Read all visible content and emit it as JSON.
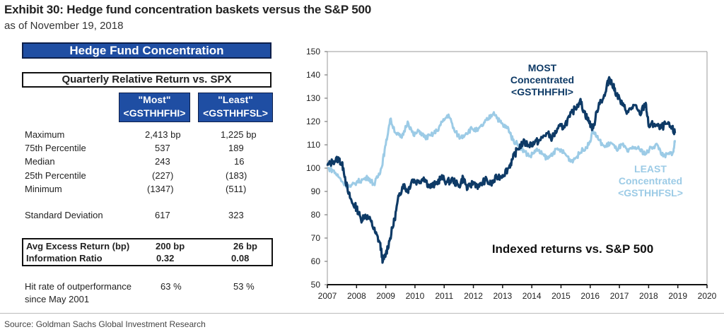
{
  "header": {
    "title": "Exhibit 30: Hedge fund concentration baskets versus the S&P 500",
    "subtitle": "as of November 19, 2018"
  },
  "table": {
    "banner": "Hedge Fund Concentration",
    "subbanner": "Quarterly Relative Return vs. SPX",
    "columns": [
      {
        "line1": "\"Most\"",
        "line2": "<GSTHHFHI>"
      },
      {
        "line1": "\"Least\"",
        "line2": "<GSTHHFSL>"
      }
    ],
    "rows": [
      {
        "label": "Maximum",
        "most": "2,413  bp",
        "least": "1,225  bp"
      },
      {
        "label": "75th Percentile",
        "most": "537",
        "least": "189"
      },
      {
        "label": "Median",
        "most": "243",
        "least": "16"
      },
      {
        "label": "25th Percentile",
        "most": "(227)",
        "least": "(183)"
      },
      {
        "label": "Minimum",
        "most": "(1347)",
        "least": "(511)"
      }
    ],
    "stddev": {
      "label": "Standard Deviation",
      "most": "617",
      "least": "323"
    },
    "boxed_rows": [
      {
        "label": "Avg Excess Return (bp)",
        "most": "200  bp",
        "least": "26  bp"
      },
      {
        "label": "Information Ratio",
        "most": "0.32",
        "least": "0.08"
      }
    ],
    "hit_rate": {
      "label_line1": "Hit rate of outperformance",
      "label_line2": "since May 2001",
      "most": "63 %",
      "least": "53 %"
    }
  },
  "footer": {
    "source": "Source: Goldman Sachs Global Investment Research"
  },
  "chart_data": {
    "type": "line",
    "title": "Indexed returns vs. S&P 500",
    "xlabel": "",
    "ylabel": "",
    "xlim": [
      2007,
      2020
    ],
    "ylim": [
      50,
      150
    ],
    "x_ticks": [
      "2007",
      "2008",
      "2009",
      "2010",
      "2011",
      "2012",
      "2013",
      "2014",
      "2015",
      "2016",
      "2017",
      "2018",
      "2019",
      "2020"
    ],
    "y_ticks": [
      "50",
      "60",
      "70",
      "80",
      "90",
      "100",
      "110",
      "120",
      "130",
      "140",
      "150"
    ],
    "grid": false,
    "legend": "inline annotations",
    "series": [
      {
        "name": "MOST Concentrated <GSTHHFHI>",
        "label_lines": [
          "MOST",
          "Concentrated",
          "<GSTHHFHI>"
        ],
        "color": "#0e3a66",
        "x": [
          2007.0,
          2007.2,
          2007.4,
          2007.55,
          2007.7,
          2007.85,
          2008.0,
          2008.15,
          2008.3,
          2008.5,
          2008.65,
          2008.8,
          2008.9,
          2009.0,
          2009.15,
          2009.3,
          2009.45,
          2009.6,
          2009.75,
          2009.9,
          2010.1,
          2010.3,
          2010.5,
          2010.7,
          2010.9,
          2011.1,
          2011.3,
          2011.5,
          2011.65,
          2011.8,
          2012.0,
          2012.2,
          2012.4,
          2012.6,
          2012.8,
          2013.0,
          2013.2,
          2013.35,
          2013.5,
          2013.7,
          2013.9,
          2014.1,
          2014.3,
          2014.5,
          2014.7,
          2014.9,
          2015.1,
          2015.3,
          2015.5,
          2015.65,
          2015.8,
          2015.95,
          2016.1,
          2016.3,
          2016.5,
          2016.65,
          2016.75,
          2016.9,
          2017.1,
          2017.3,
          2017.5,
          2017.7,
          2017.9,
          2018.0,
          2018.2,
          2018.4,
          2018.6,
          2018.8,
          2018.9
        ],
        "values": [
          101,
          103,
          104,
          100,
          90,
          85,
          83,
          78,
          80,
          77,
          72,
          68,
          60,
          63,
          70,
          78,
          88,
          93,
          90,
          95,
          94,
          96,
          92,
          93,
          96,
          94,
          95,
          92,
          96,
          91,
          94,
          92,
          95,
          93,
          96,
          97,
          100,
          104,
          108,
          111,
          110,
          111,
          112,
          115,
          113,
          117,
          118,
          122,
          126,
          129,
          124,
          120,
          117,
          128,
          131,
          139,
          136,
          132,
          127,
          124,
          127,
          123,
          128,
          118,
          119,
          117,
          119,
          117,
          115
        ]
      },
      {
        "name": "LEAST Concentrated <GSTHHFSL>",
        "label_lines": [
          "LEAST",
          "Concentrated",
          "<GSTHHFSL>"
        ],
        "color": "#9ccbe6",
        "x": [
          2007.0,
          2007.2,
          2007.4,
          2007.6,
          2007.8,
          2008.0,
          2008.2,
          2008.4,
          2008.6,
          2008.75,
          2008.85,
          2009.0,
          2009.15,
          2009.35,
          2009.55,
          2009.75,
          2009.95,
          2010.15,
          2010.35,
          2010.55,
          2010.75,
          2010.95,
          2011.15,
          2011.35,
          2011.55,
          2011.75,
          2011.95,
          2012.15,
          2012.35,
          2012.5,
          2012.7,
          2012.9,
          2013.05,
          2013.2,
          2013.35,
          2013.55,
          2013.75,
          2013.95,
          2014.15,
          2014.35,
          2014.55,
          2014.75,
          2014.95,
          2015.15,
          2015.35,
          2015.55,
          2015.75,
          2015.95,
          2016.1,
          2016.3,
          2016.5,
          2016.7,
          2016.9,
          2017.1,
          2017.3,
          2017.5,
          2017.7,
          2017.9,
          2018.1,
          2018.3,
          2018.5,
          2018.7,
          2018.85,
          2018.9
        ],
        "values": [
          100,
          99,
          96,
          93,
          92,
          94,
          95,
          96,
          93,
          97,
          100,
          110,
          121,
          115,
          113,
          120,
          114,
          116,
          113,
          114,
          116,
          120,
          123,
          116,
          113,
          115,
          117,
          116,
          119,
          121,
          124,
          120,
          118,
          117,
          112,
          110,
          107,
          105,
          108,
          106,
          104,
          107,
          108,
          106,
          103,
          105,
          108,
          110,
          116,
          112,
          109,
          111,
          108,
          110,
          107,
          109,
          108,
          106,
          109,
          110,
          105,
          106,
          107,
          112
        ]
      }
    ]
  }
}
